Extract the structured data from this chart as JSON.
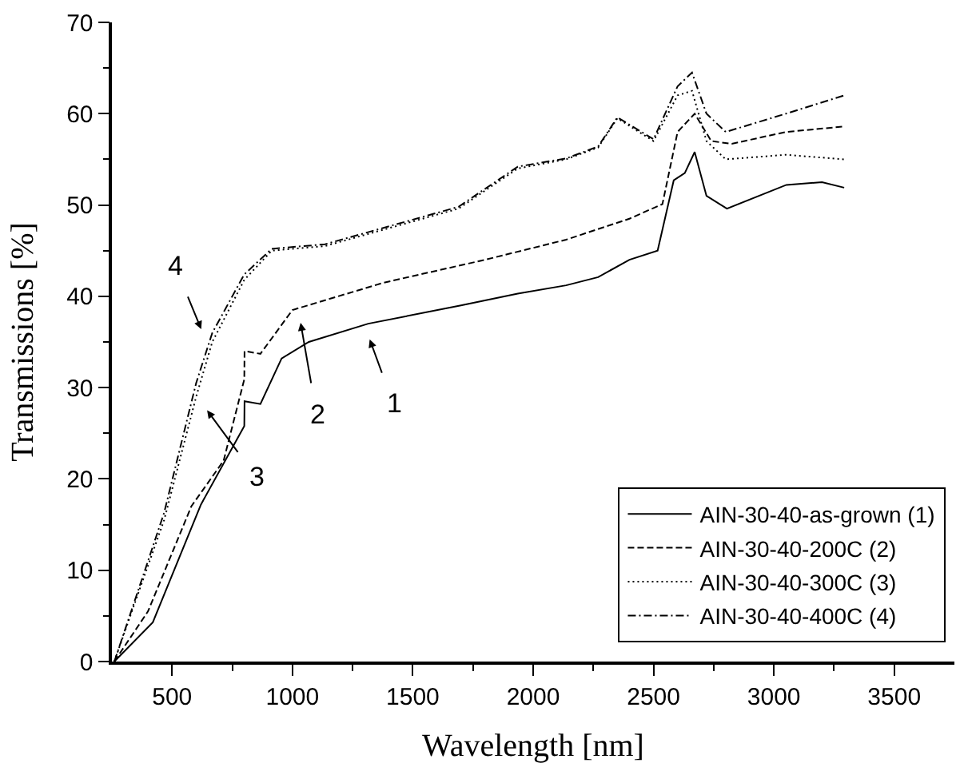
{
  "chart_data": {
    "type": "line",
    "xlabel": "Wavelength [nm]",
    "ylabel": "Transmissions [%]",
    "xlim": [
      250,
      3750
    ],
    "ylim": [
      0,
      70
    ],
    "xticks": [
      500,
      {
        "value": 750,
        "label": null
      },
      1000,
      {
        "value": 1250,
        "label": null
      },
      1500,
      {
        "value": 1750,
        "label": null
      },
      2000,
      {
        "value": 2250,
        "label": null
      },
      2500,
      {
        "value": 2750,
        "label": null
      },
      3000,
      {
        "value": 3250,
        "label": null
      },
      3500
    ],
    "yticks": [
      0,
      {
        "value": 5,
        "label": null
      },
      10,
      {
        "value": 15,
        "label": null
      },
      20,
      {
        "value": 25,
        "label": null
      },
      30,
      {
        "value": 35,
        "label": null
      },
      40,
      {
        "value": 45,
        "label": null
      },
      50,
      {
        "value": 55,
        "label": null
      },
      60,
      {
        "value": 65,
        "label": null
      },
      70
    ],
    "legend": "bottom right",
    "marker": "none",
    "series": [
      {
        "name": "AIN-30-40-as-grown (1)",
        "color": "#000000",
        "line_style": "solid",
        "x": [
          260,
          420,
          620,
          800,
          801,
          867,
          955,
          1068,
          1315,
          1700,
          1936,
          2137,
          2270,
          2400,
          2517,
          2584,
          2630,
          2671,
          2720,
          2805,
          3052,
          3200,
          3292
        ],
        "values": [
          0,
          4.3,
          17.2,
          25.8,
          28.5,
          28.2,
          33.2,
          35,
          37,
          39,
          40.3,
          41.2,
          42.1,
          44,
          45,
          52.7,
          53.5,
          55.8,
          51,
          49.6,
          52.2,
          52.5,
          51.9
        ]
      },
      {
        "name": "AIN-30-40-200C (2)",
        "color": "#000000",
        "line_style": "dashed",
        "x": [
          260,
          400,
          580,
          714,
          800,
          801,
          867,
          1000,
          1380,
          1800,
          2137,
          2400,
          2537,
          2600,
          2671,
          2740,
          2825,
          3050,
          3292
        ],
        "values": [
          0,
          5.5,
          17,
          22,
          30.9,
          34,
          33.7,
          38.5,
          41.5,
          44,
          46.2,
          48.5,
          50.1,
          58,
          60,
          57,
          56.7,
          58,
          58.6
        ]
      },
      {
        "name": "AIN-30-40-300C (3)",
        "color": "#000000",
        "line_style": "dotted",
        "x": [
          260,
          353,
          467,
          600,
          667,
          800,
          914,
          1135,
          1690,
          1936,
          2137,
          2270,
          2350,
          2500,
          2600,
          2660,
          2720,
          2800,
          3050,
          3292
        ],
        "values": [
          0,
          7,
          15.5,
          29,
          35,
          41.8,
          45,
          45.5,
          49.6,
          54,
          55,
          56.3,
          59.5,
          57,
          62,
          62.5,
          57,
          55,
          55.5,
          55
        ]
      },
      {
        "name": "AIN-30-40-400C (4)",
        "color": "#000000",
        "line_style": "dashdot",
        "x": [
          260,
          353,
          467,
          600,
          667,
          800,
          914,
          1135,
          1690,
          1936,
          2137,
          2270,
          2350,
          2500,
          2600,
          2660,
          2720,
          2800,
          3050,
          3292
        ],
        "values": [
          0,
          7.3,
          16.3,
          30.5,
          36,
          42.4,
          45.2,
          45.7,
          49.8,
          54.2,
          55.1,
          56.4,
          59.6,
          57.2,
          63,
          64.5,
          60,
          58,
          60,
          62
        ]
      }
    ],
    "annotations": [
      "1",
      "2",
      "3",
      "4"
    ]
  }
}
